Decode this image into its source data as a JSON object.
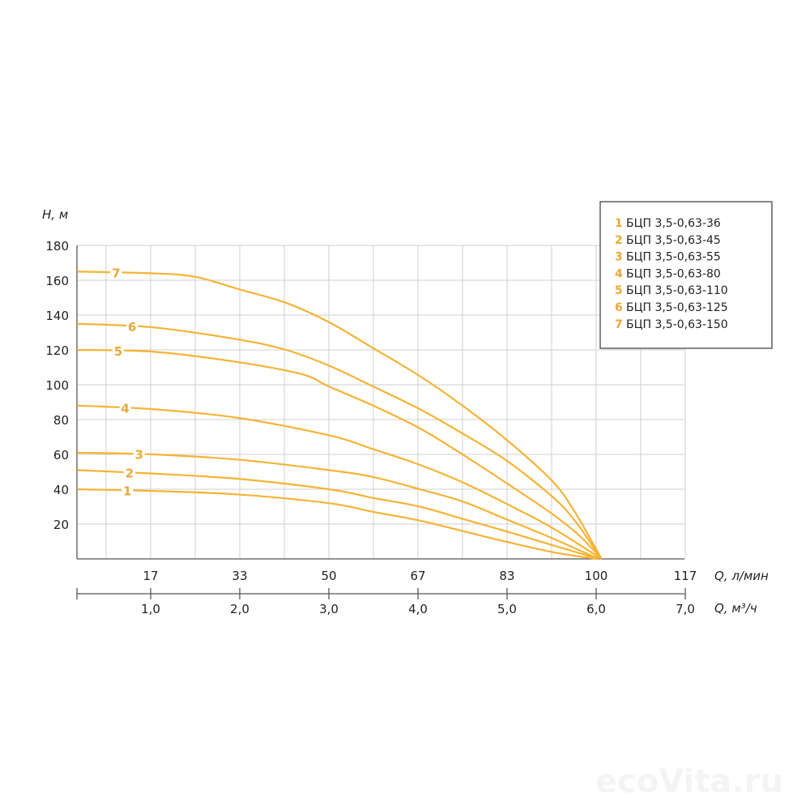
{
  "chart_data": {
    "type": "line",
    "ylabel": "H, м",
    "xlabel": "Q, л/мин",
    "xlabel2": "Q, м³/ч",
    "ylim": [
      0,
      180
    ],
    "xlim": [
      2.9,
      116.7
    ],
    "yticks": [
      "20",
      "40",
      "60",
      "80",
      "100",
      "120",
      "140",
      "160",
      "180"
    ],
    "xticks": [
      {
        "v": 16.67,
        "label": "17"
      },
      {
        "v": 33.33,
        "label": "33"
      },
      {
        "v": 50,
        "label": "50"
      },
      {
        "v": 66.67,
        "label": "67"
      },
      {
        "v": 83.33,
        "label": "83"
      },
      {
        "v": 100,
        "label": "100"
      },
      {
        "v": 116.67,
        "label": "117"
      }
    ],
    "xticks2": [
      {
        "v": 16.67,
        "label": "1,0"
      },
      {
        "v": 33.33,
        "label": "2,0"
      },
      {
        "v": 50,
        "label": "3,0"
      },
      {
        "v": 66.67,
        "label": "4,0"
      },
      {
        "v": 83.33,
        "label": "5,0"
      },
      {
        "v": 100,
        "label": "6,0"
      },
      {
        "v": 116.67,
        "label": "7,0"
      }
    ],
    "grid": true,
    "legend_position": "top-right",
    "curve_color": "#f5b335",
    "label_color": "#e8a93a",
    "series": [
      {
        "id": "1",
        "name": "БЦП 3,5-0,63-36",
        "label_at": 12.3,
        "x": [
          2.9,
          17,
          33,
          50,
          58.3,
          67,
          75,
          83,
          91.7,
          100
        ],
        "y": [
          40,
          39,
          37,
          32,
          27,
          22,
          16,
          10,
          4,
          0
        ]
      },
      {
        "id": "2",
        "name": "БЦП 3,5-0,63-45",
        "label_at": 12.7,
        "x": [
          2.9,
          17,
          33,
          50,
          58.3,
          67,
          75,
          83,
          91.7,
          100.5
        ],
        "y": [
          51,
          49,
          46,
          40,
          35,
          30,
          23,
          16,
          8,
          0
        ]
      },
      {
        "id": "3",
        "name": "БЦП 3,5-0,63-55",
        "label_at": 14.5,
        "x": [
          2.9,
          17,
          33,
          50,
          58.3,
          67,
          75,
          83,
          91.7,
          100.5
        ],
        "y": [
          61,
          60,
          57,
          51,
          47,
          40,
          33,
          23,
          12,
          0
        ]
      },
      {
        "id": "4",
        "name": "БЦП 3,5-0,63-80",
        "label_at": 11.9,
        "x": [
          2.9,
          17,
          33,
          50,
          58.3,
          67,
          75,
          83,
          91.7,
          101
        ],
        "y": [
          88,
          86,
          81,
          71,
          63,
          54,
          44,
          32,
          18,
          0
        ]
      },
      {
        "id": "5",
        "name": "БЦП 3,5-0,63-110",
        "label_at": 10.6,
        "x": [
          2.9,
          17,
          33,
          45,
          50,
          58.3,
          67,
          75,
          83,
          91.7,
          97,
          101
        ],
        "y": [
          120,
          119,
          113,
          106,
          99,
          88,
          75,
          60,
          44,
          26,
          13,
          0
        ]
      },
      {
        "id": "6",
        "name": "БЦП 3,5-0,63-125",
        "label_at": 13.2,
        "x": [
          2.9,
          17,
          33,
          42,
          50,
          58.3,
          67,
          75,
          83,
          91.7,
          96,
          101
        ],
        "y": [
          135,
          133,
          126,
          120,
          111,
          99,
          86,
          72,
          57,
          36,
          22,
          0
        ]
      },
      {
        "id": "7",
        "name": "БЦП 3,5-0,63-150",
        "label_at": 10.2,
        "x": [
          2.9,
          17,
          25,
          33,
          42,
          50,
          58.3,
          67,
          75,
          83,
          91.7,
          96,
          101
        ],
        "y": [
          165,
          164,
          162,
          155,
          147,
          136,
          121,
          105,
          88,
          69,
          45,
          27,
          0
        ]
      }
    ]
  },
  "watermark": "ecoVita.ru"
}
